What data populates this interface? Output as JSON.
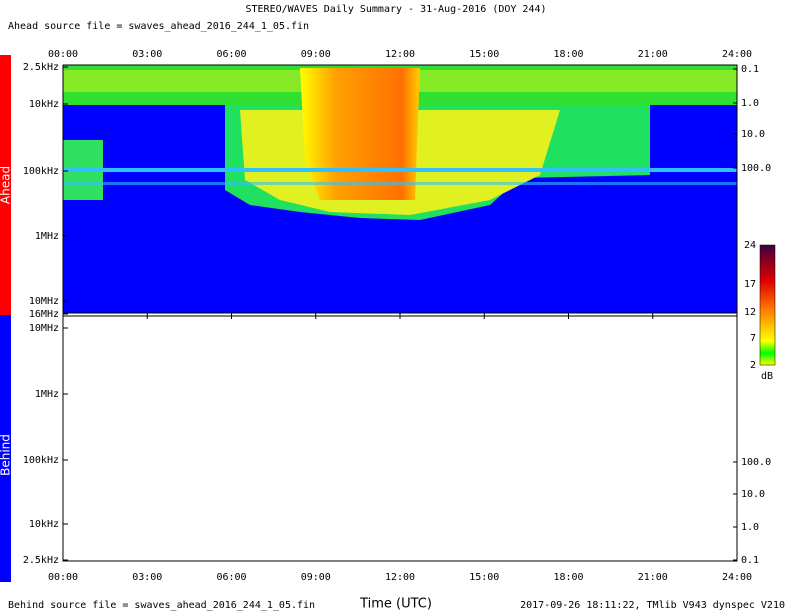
{
  "header": {
    "title": "STEREO/WAVES Daily Summary - 31-Aug-2016 (DOY 244)",
    "ahead_source": "Ahead source file = swaves_ahead_2016_244_1_05.fin"
  },
  "time_ticks": [
    "00:00",
    "03:00",
    "06:00",
    "09:00",
    "12:00",
    "15:00",
    "18:00",
    "21:00",
    "24:00"
  ],
  "ahead": {
    "label": "Ahead",
    "freq_ticks": [
      "2.5kHz",
      "10kHz",
      "100kHz",
      "1MHz",
      "10MHz",
      "16MHz"
    ],
    "right_ticks": [
      "0.1",
      "1.0",
      "10.0",
      "100.0"
    ]
  },
  "behind": {
    "label": "Behind",
    "freq_ticks": [
      "10MHz",
      "1MHz",
      "100kHz",
      "10kHz",
      "2.5kHz"
    ],
    "right_ticks": [
      "100.0",
      "10.0",
      "1.0",
      "0.1"
    ]
  },
  "colorbar": {
    "ticks": [
      "24",
      "17",
      "12",
      "7",
      "2"
    ],
    "unit": "dB"
  },
  "footer": {
    "behind_source": "Behind source file = swaves_ahead_2016_244_1_05.fin",
    "x_label": "Time (UTC)",
    "stamp": "2017-09-26 18:11:22, TMlib V943 dynspec V210"
  }
}
